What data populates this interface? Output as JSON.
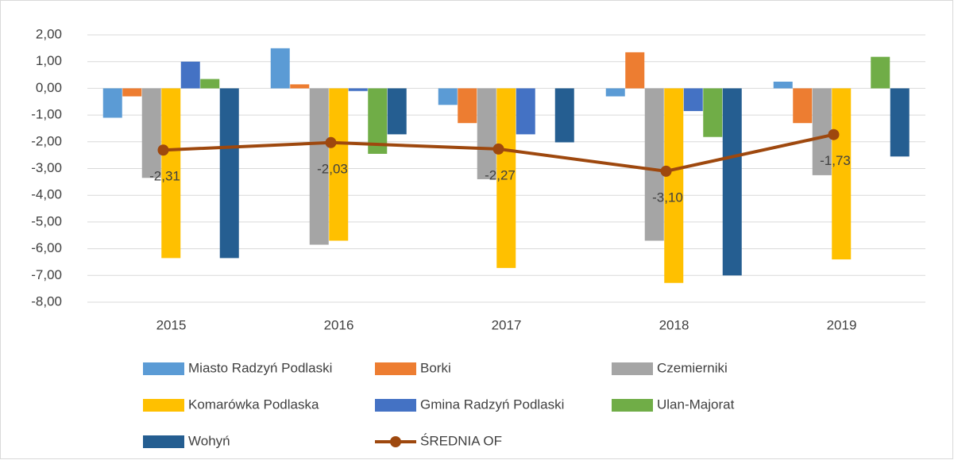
{
  "chart_data": {
    "type": "bar",
    "categories": [
      "2015",
      "2016",
      "2017",
      "2018",
      "2019"
    ],
    "series": [
      {
        "name": "Miasto Radzyń Podlaski",
        "color": "#5b9bd5",
        "values": [
          -1.1,
          1.5,
          -0.62,
          -0.3,
          0.25
        ]
      },
      {
        "name": "Borki",
        "color": "#ed7d31",
        "values": [
          -0.3,
          0.15,
          -1.3,
          1.35,
          -1.3
        ]
      },
      {
        "name": "Czemierniki",
        "color": "#a5a5a5",
        "values": [
          -3.35,
          -5.85,
          -3.4,
          -5.7,
          -3.25
        ]
      },
      {
        "name": "Komarówka Podlaska",
        "color": "#ffc000",
        "values": [
          -6.35,
          -5.7,
          -6.72,
          -7.28,
          -6.4
        ]
      },
      {
        "name": "Gmina Radzyń Podlaski",
        "color": "#4472c4",
        "values": [
          1.0,
          -0.1,
          -1.72,
          -0.85,
          null
        ]
      },
      {
        "name": "Ulan-Majorat",
        "color": "#70ad47",
        "values": [
          0.35,
          -2.45,
          null,
          -1.82,
          1.18
        ]
      },
      {
        "name": "Wohyń",
        "color": "#255e91",
        "values": [
          -6.35,
          -1.72,
          -2.02,
          -7.0,
          -2.55
        ]
      },
      {
        "name": "ŚREDNIA OF",
        "color": "#9e480e",
        "type": "line",
        "values": [
          -2.31,
          -2.03,
          -2.27,
          -3.1,
          -1.73
        ],
        "value_labels": [
          "-2,31",
          "-2,03",
          "-2,27",
          "-3,10",
          "-1,73"
        ]
      }
    ],
    "ylim": [
      -8,
      2
    ],
    "yticks": [
      {
        "value": 2,
        "label": "2,00"
      },
      {
        "value": 1,
        "label": "1,00"
      },
      {
        "value": 0,
        "label": "0,00"
      },
      {
        "value": -1,
        "label": "-1,00"
      },
      {
        "value": -2,
        "label": "-2,00"
      },
      {
        "value": -3,
        "label": "-3,00"
      },
      {
        "value": -4,
        "label": "-4,00"
      },
      {
        "value": -5,
        "label": "-5,00"
      },
      {
        "value": -6,
        "label": "-6,00"
      },
      {
        "value": -7,
        "label": "-7,00"
      },
      {
        "value": -8,
        "label": "-8,00"
      }
    ],
    "grid": true,
    "legend": "bottom"
  }
}
